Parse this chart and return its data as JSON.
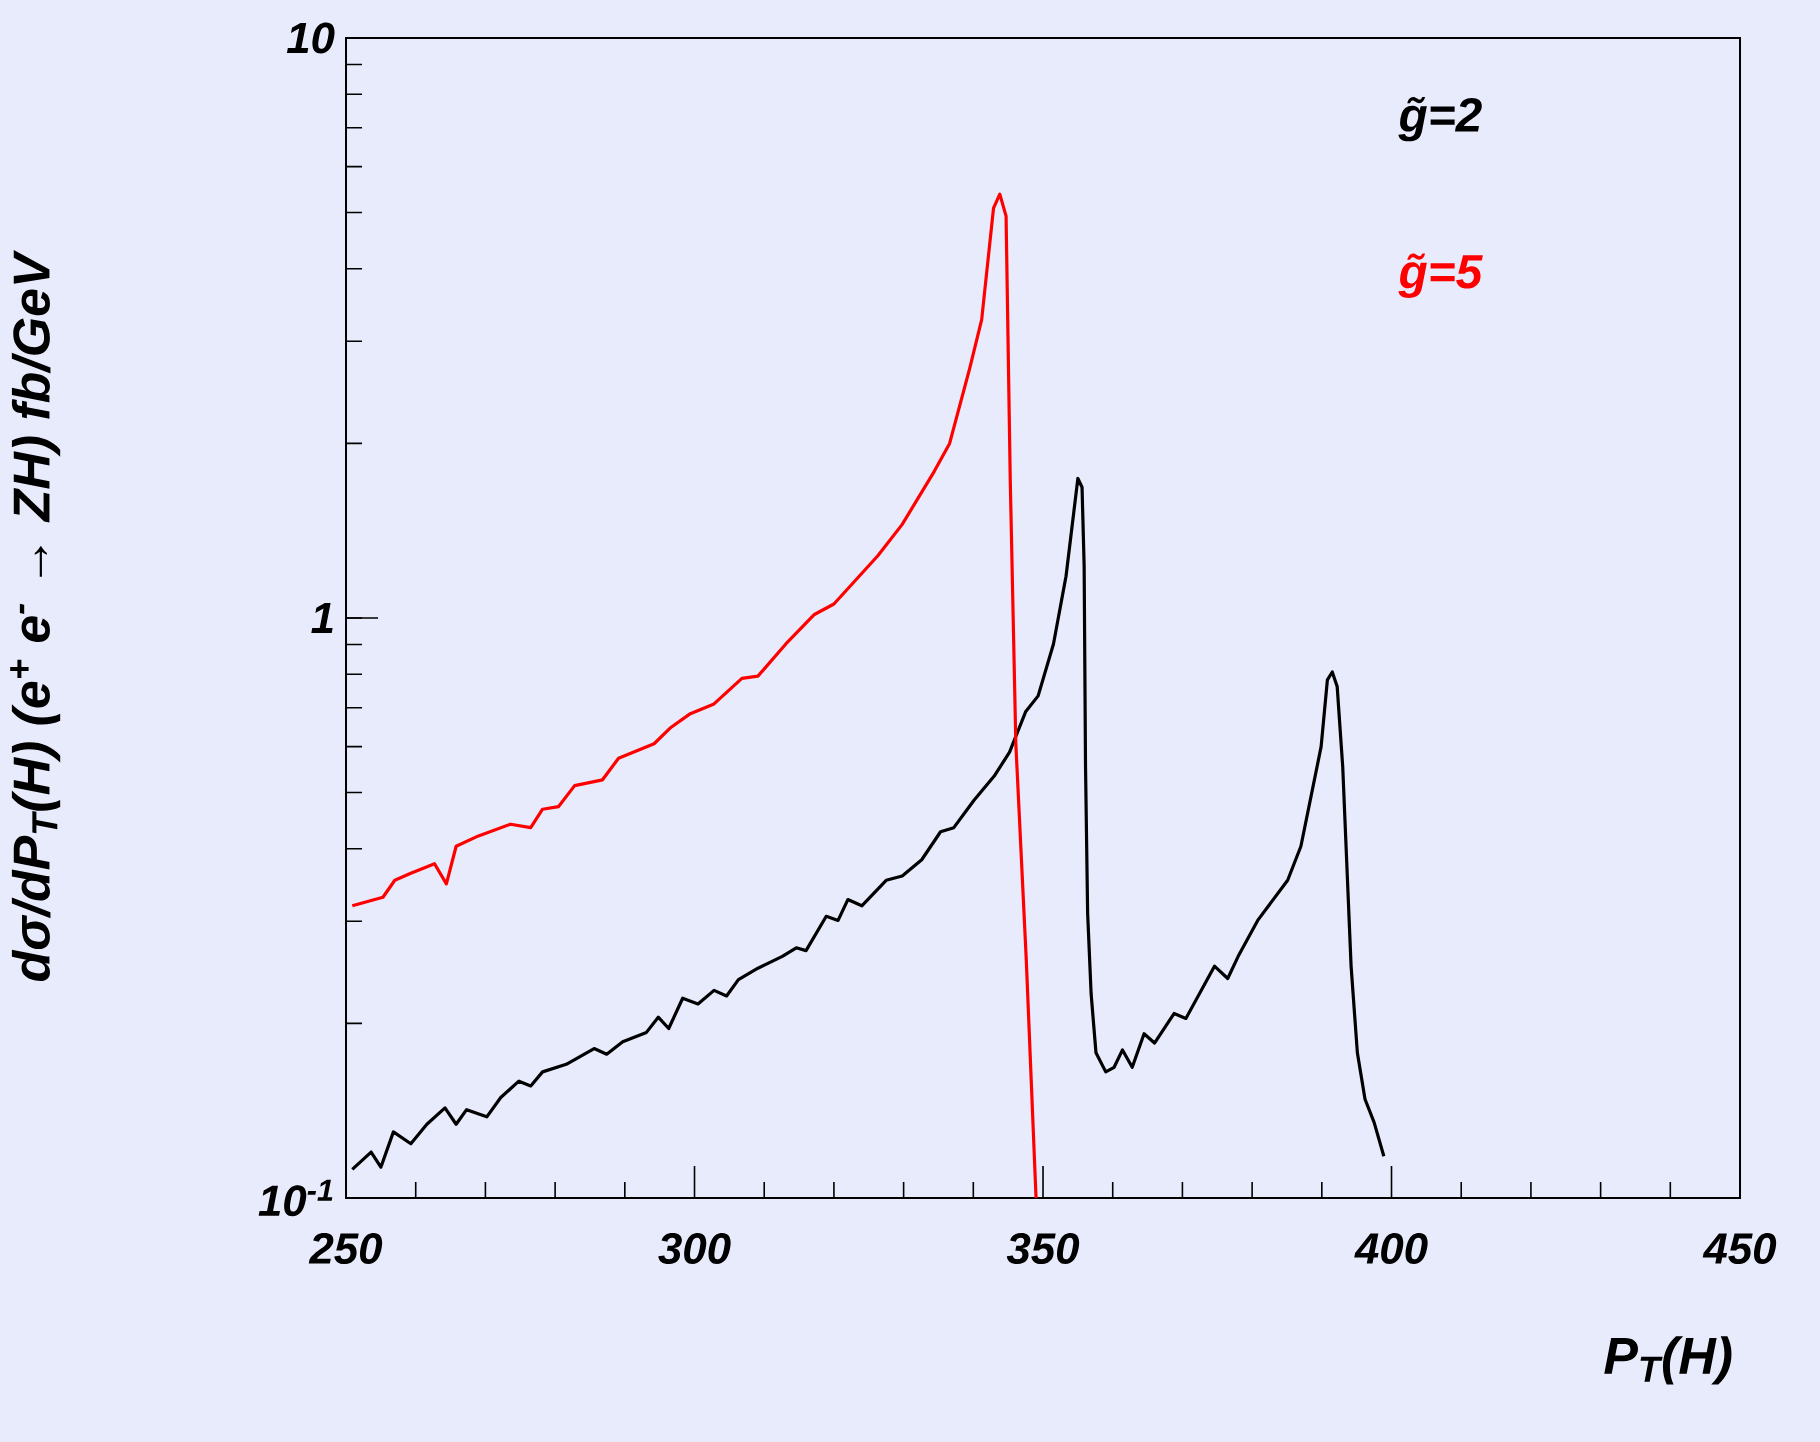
{
  "chart_data": {
    "type": "line",
    "xlabel": "P$_{T}$(H)",
    "ylabel": "dσ/dP$_{T}$(H) (e$^{+}$ e$^{-}$ → ZH) fb/GeV",
    "log": "y",
    "legend": "top right",
    "marker": "none",
    "line_style": "solid",
    "xlim": [
      250,
      450
    ],
    "xticks": [
      250,
      300,
      350,
      400,
      450
    ],
    "ylim": [
      0.1,
      10
    ],
    "yticks": [
      {
        "value": 0.1,
        "label": "10$^{-1}$"
      },
      1,
      10
    ],
    "series": [
      {
        "name": "g̃=2",
        "color": "#000000",
        "x": [
          250.9,
          253.6,
          255.0,
          256.8,
          259.3,
          261.6,
          264.2,
          265.8,
          267.3,
          270.2,
          272.2,
          274.8,
          276.5,
          278.2,
          281.6,
          285.6,
          287.4,
          289.7,
          293.1,
          294.8,
          296.3,
          298.3,
          300.5,
          302.8,
          304.6,
          306.3,
          309.1,
          312.6,
          314.6,
          316.0,
          318.9,
          320.6,
          322.0,
          324.0,
          327.5,
          329.8,
          332.6,
          335.3,
          337.2,
          340.1,
          343.0,
          345.2,
          347.5,
          349.3,
          351.5,
          353.3,
          355.0,
          355.6,
          355.9,
          356.1,
          356.4,
          356.9,
          357.6,
          359.0,
          360.2,
          361.4,
          362.8,
          364.5,
          366.0,
          368.8,
          370.5,
          374.6,
          376.5,
          378.0,
          380.8,
          385.1,
          387.0,
          389.9,
          390.8,
          391.5,
          392.2,
          393.0,
          394.2,
          395.1,
          396.2,
          397.5,
          398.9
        ],
        "values": [
          0.112,
          0.12,
          0.113,
          0.13,
          0.124,
          0.134,
          0.143,
          0.134,
          0.142,
          0.138,
          0.149,
          0.159,
          0.156,
          0.165,
          0.17,
          0.181,
          0.177,
          0.186,
          0.193,
          0.205,
          0.196,
          0.221,
          0.216,
          0.228,
          0.223,
          0.238,
          0.249,
          0.261,
          0.27,
          0.267,
          0.306,
          0.301,
          0.327,
          0.319,
          0.353,
          0.359,
          0.383,
          0.428,
          0.435,
          0.485,
          0.534,
          0.587,
          0.689,
          0.734,
          0.902,
          1.18,
          1.74,
          1.68,
          1.23,
          0.554,
          0.31,
          0.225,
          0.178,
          0.165,
          0.168,
          0.18,
          0.168,
          0.192,
          0.185,
          0.208,
          0.204,
          0.251,
          0.239,
          0.261,
          0.301,
          0.353,
          0.404,
          0.6,
          0.782,
          0.807,
          0.762,
          0.554,
          0.251,
          0.178,
          0.148,
          0.135,
          0.118
        ]
      },
      {
        "name": "g̃=5",
        "color": "#ff0000",
        "x": [
          250.9,
          255.3,
          257.0,
          259.3,
          262.7,
          264.4,
          265.8,
          269.0,
          273.6,
          276.5,
          278.2,
          280.5,
          282.8,
          286.8,
          289.1,
          294.2,
          296.5,
          299.4,
          302.8,
          306.8,
          309.1,
          313.1,
          317.2,
          320.0,
          326.3,
          329.8,
          334.4,
          336.6,
          339.5,
          341.2,
          342.9,
          343.8,
          344.7,
          345.3,
          346.1,
          347.6,
          349.0
        ],
        "values": [
          0.319,
          0.33,
          0.353,
          0.363,
          0.377,
          0.348,
          0.404,
          0.421,
          0.441,
          0.435,
          0.468,
          0.473,
          0.514,
          0.526,
          0.573,
          0.607,
          0.646,
          0.684,
          0.711,
          0.787,
          0.794,
          0.902,
          1.014,
          1.057,
          1.28,
          1.45,
          1.79,
          2.0,
          2.7,
          3.27,
          5.09,
          5.38,
          4.93,
          1.73,
          0.607,
          0.257,
          0.1
        ]
      }
    ]
  }
}
